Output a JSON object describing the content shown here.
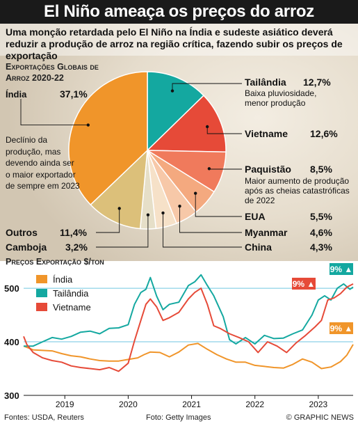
{
  "header": {
    "title": "El Niño ameaça os preços do arroz",
    "subtitle": "Uma monção retardada pelo El Niño na Índia e sudeste asiático deverá reduzir a produção de arroz na região crítica, fazendo subir os preços de exportação"
  },
  "pie_heading": "Exportações Globais de Arroz 2020-22",
  "pie_notes": {
    "india": "Declínio da produção, mas devendo ainda ser o maior exportador de sempre em 2023",
    "thailand": "Baixa pluviosidade, menor produção",
    "pakistan": "Maior aumento de produção após as cheias catastróficas de 2022"
  },
  "line_heading": "Preços Exportação $/ton",
  "footer": {
    "source": "Fontes: USDA, Reuters",
    "photo": "Foto: Getty Images",
    "credit": "© GRAPHIC NEWS"
  },
  "colors": {
    "india": "#f0952a",
    "thailand": "#14a8a0",
    "vietnam": "#e64a38",
    "pakistan": "#f07a5c",
    "usa": "#f4a97f",
    "myanmar": "#f7c8a8",
    "china": "#f6e1c8",
    "cambodia": "#e6dfc8",
    "others": "#dcc07a",
    "title_bar": "#1a1a1a",
    "highlight_blue": "#6fc6e0"
  },
  "chart_data": [
    {
      "type": "pie",
      "title": "Exportações Globais de Arroz 2020-22",
      "unit": "%",
      "slices": [
        {
          "key": "thailand",
          "name": "Tailândia",
          "value": 12.7,
          "label": "12,7%",
          "color": "#14a8a0"
        },
        {
          "key": "vietnam",
          "name": "Vietname",
          "value": 12.6,
          "label": "12,6%",
          "color": "#e64a38"
        },
        {
          "key": "pakistan",
          "name": "Paquistão",
          "value": 8.5,
          "label": "8,5%",
          "color": "#f07a5c"
        },
        {
          "key": "usa",
          "name": "EUA",
          "value": 5.5,
          "label": "5,5%",
          "color": "#f4a97f"
        },
        {
          "key": "myanmar",
          "name": "Myanmar",
          "value": 4.6,
          "label": "4,6%",
          "color": "#f7c8a8"
        },
        {
          "key": "china",
          "name": "China",
          "value": 4.3,
          "label": "4,3%",
          "color": "#f6e1c8"
        },
        {
          "key": "cambodia",
          "name": "Camboja",
          "value": 3.2,
          "label": "3,2%",
          "color": "#e6dfc8"
        },
        {
          "key": "others",
          "name": "Outros",
          "value": 11.4,
          "label": "11,4%",
          "color": "#dcc07a"
        },
        {
          "key": "india",
          "name": "Índia",
          "value": 37.1,
          "label": "37,1%",
          "color": "#f0952a"
        }
      ]
    },
    {
      "type": "line",
      "title": "Preços Exportação $/ton",
      "ylabel": "$/ton",
      "ylim": [
        300,
        530
      ],
      "yticks": [
        300,
        400,
        500
      ],
      "x_ticks": [
        "2019",
        "2020",
        "2021",
        "2022",
        "2023"
      ],
      "x_range": [
        2018.35,
        2023.55
      ],
      "legend": "top-left",
      "series": [
        {
          "name": "Índia",
          "key": "india",
          "color": "#f0952a",
          "end_label": "9%",
          "x": [
            2018.35,
            2018.5,
            2018.65,
            2018.8,
            2018.95,
            2019.1,
            2019.25,
            2019.4,
            2019.55,
            2019.7,
            2019.85,
            2020.0,
            2020.15,
            2020.25,
            2020.35,
            2020.5,
            2020.65,
            2020.8,
            2020.95,
            2021.1,
            2021.25,
            2021.4,
            2021.55,
            2021.7,
            2021.85,
            2022.0,
            2022.15,
            2022.3,
            2022.45,
            2022.6,
            2022.75,
            2022.9,
            2023.05,
            2023.2,
            2023.35,
            2023.45,
            2023.55
          ],
          "values": [
            392,
            385,
            384,
            383,
            378,
            374,
            372,
            368,
            365,
            364,
            364,
            367,
            370,
            376,
            381,
            380,
            372,
            381,
            394,
            397,
            386,
            376,
            368,
            362,
            362,
            356,
            354,
            352,
            351,
            358,
            368,
            362,
            350,
            353,
            363,
            375,
            395
          ]
        },
        {
          "name": "Tailândia",
          "key": "thailand",
          "color": "#14a8a0",
          "end_label": "9%",
          "x": [
            2018.35,
            2018.5,
            2018.65,
            2018.8,
            2018.95,
            2019.1,
            2019.25,
            2019.4,
            2019.55,
            2019.7,
            2019.85,
            2020.0,
            2020.1,
            2020.2,
            2020.28,
            2020.35,
            2020.45,
            2020.55,
            2020.65,
            2020.8,
            2020.95,
            2021.05,
            2021.15,
            2021.25,
            2021.35,
            2021.5,
            2021.6,
            2021.7,
            2021.85,
            2022.0,
            2022.15,
            2022.3,
            2022.45,
            2022.6,
            2022.75,
            2022.9,
            2023.0,
            2023.1,
            2023.2,
            2023.3,
            2023.4,
            2023.5,
            2023.55
          ],
          "values": [
            392,
            392,
            400,
            408,
            405,
            410,
            418,
            420,
            415,
            425,
            426,
            432,
            470,
            492,
            498,
            520,
            485,
            460,
            470,
            474,
            505,
            512,
            525,
            505,
            486,
            447,
            404,
            396,
            408,
            396,
            412,
            406,
            407,
            415,
            422,
            450,
            478,
            486,
            478,
            500,
            508,
            498,
            502
          ]
        },
        {
          "name": "Vietname",
          "key": "vietnam",
          "color": "#e64a38",
          "end_label": "9%",
          "x": [
            2018.35,
            2018.4,
            2018.5,
            2018.65,
            2018.8,
            2018.95,
            2019.1,
            2019.25,
            2019.4,
            2019.55,
            2019.7,
            2019.85,
            2020.0,
            2020.1,
            2020.2,
            2020.28,
            2020.35,
            2020.45,
            2020.55,
            2020.65,
            2020.8,
            2020.95,
            2021.05,
            2021.15,
            2021.25,
            2021.35,
            2021.45,
            2021.6,
            2021.75,
            2021.9,
            2022.05,
            2022.2,
            2022.35,
            2022.5,
            2022.65,
            2022.8,
            2022.95,
            2023.05,
            2023.15,
            2023.25,
            2023.35,
            2023.45,
            2023.55
          ],
          "values": [
            410,
            395,
            380,
            370,
            365,
            362,
            355,
            352,
            350,
            348,
            352,
            345,
            360,
            402,
            440,
            470,
            480,
            465,
            440,
            445,
            455,
            480,
            492,
            500,
            470,
            430,
            425,
            415,
            408,
            400,
            380,
            400,
            392,
            380,
            398,
            412,
            428,
            440,
            478,
            482,
            490,
            502,
            508
          ]
        }
      ]
    }
  ]
}
